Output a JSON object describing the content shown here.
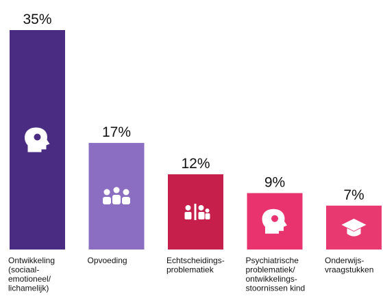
{
  "chart_data": {
    "type": "bar",
    "categories": [
      [
        "Ontwikkeling",
        "(sociaal-",
        "emotioneel/",
        "lichamelijk)"
      ],
      [
        "Opvoeding"
      ],
      [
        "Echtscheidings-",
        "problematiek"
      ],
      [
        "Psychiatrische",
        "problematiek/",
        "ontwikkelings-",
        "stoornissen kind"
      ],
      [
        "Onderwijs-",
        "vraagstukken"
      ]
    ],
    "values": [
      35,
      17,
      12,
      9,
      7
    ],
    "value_labels": [
      "35%",
      "17%",
      "12%",
      "9%",
      "7%"
    ],
    "colors": [
      "#4a2d82",
      "#8b6dc2",
      "#c61f4b",
      "#e8336f",
      "#e83a70"
    ],
    "ylim": [
      0,
      35
    ]
  }
}
